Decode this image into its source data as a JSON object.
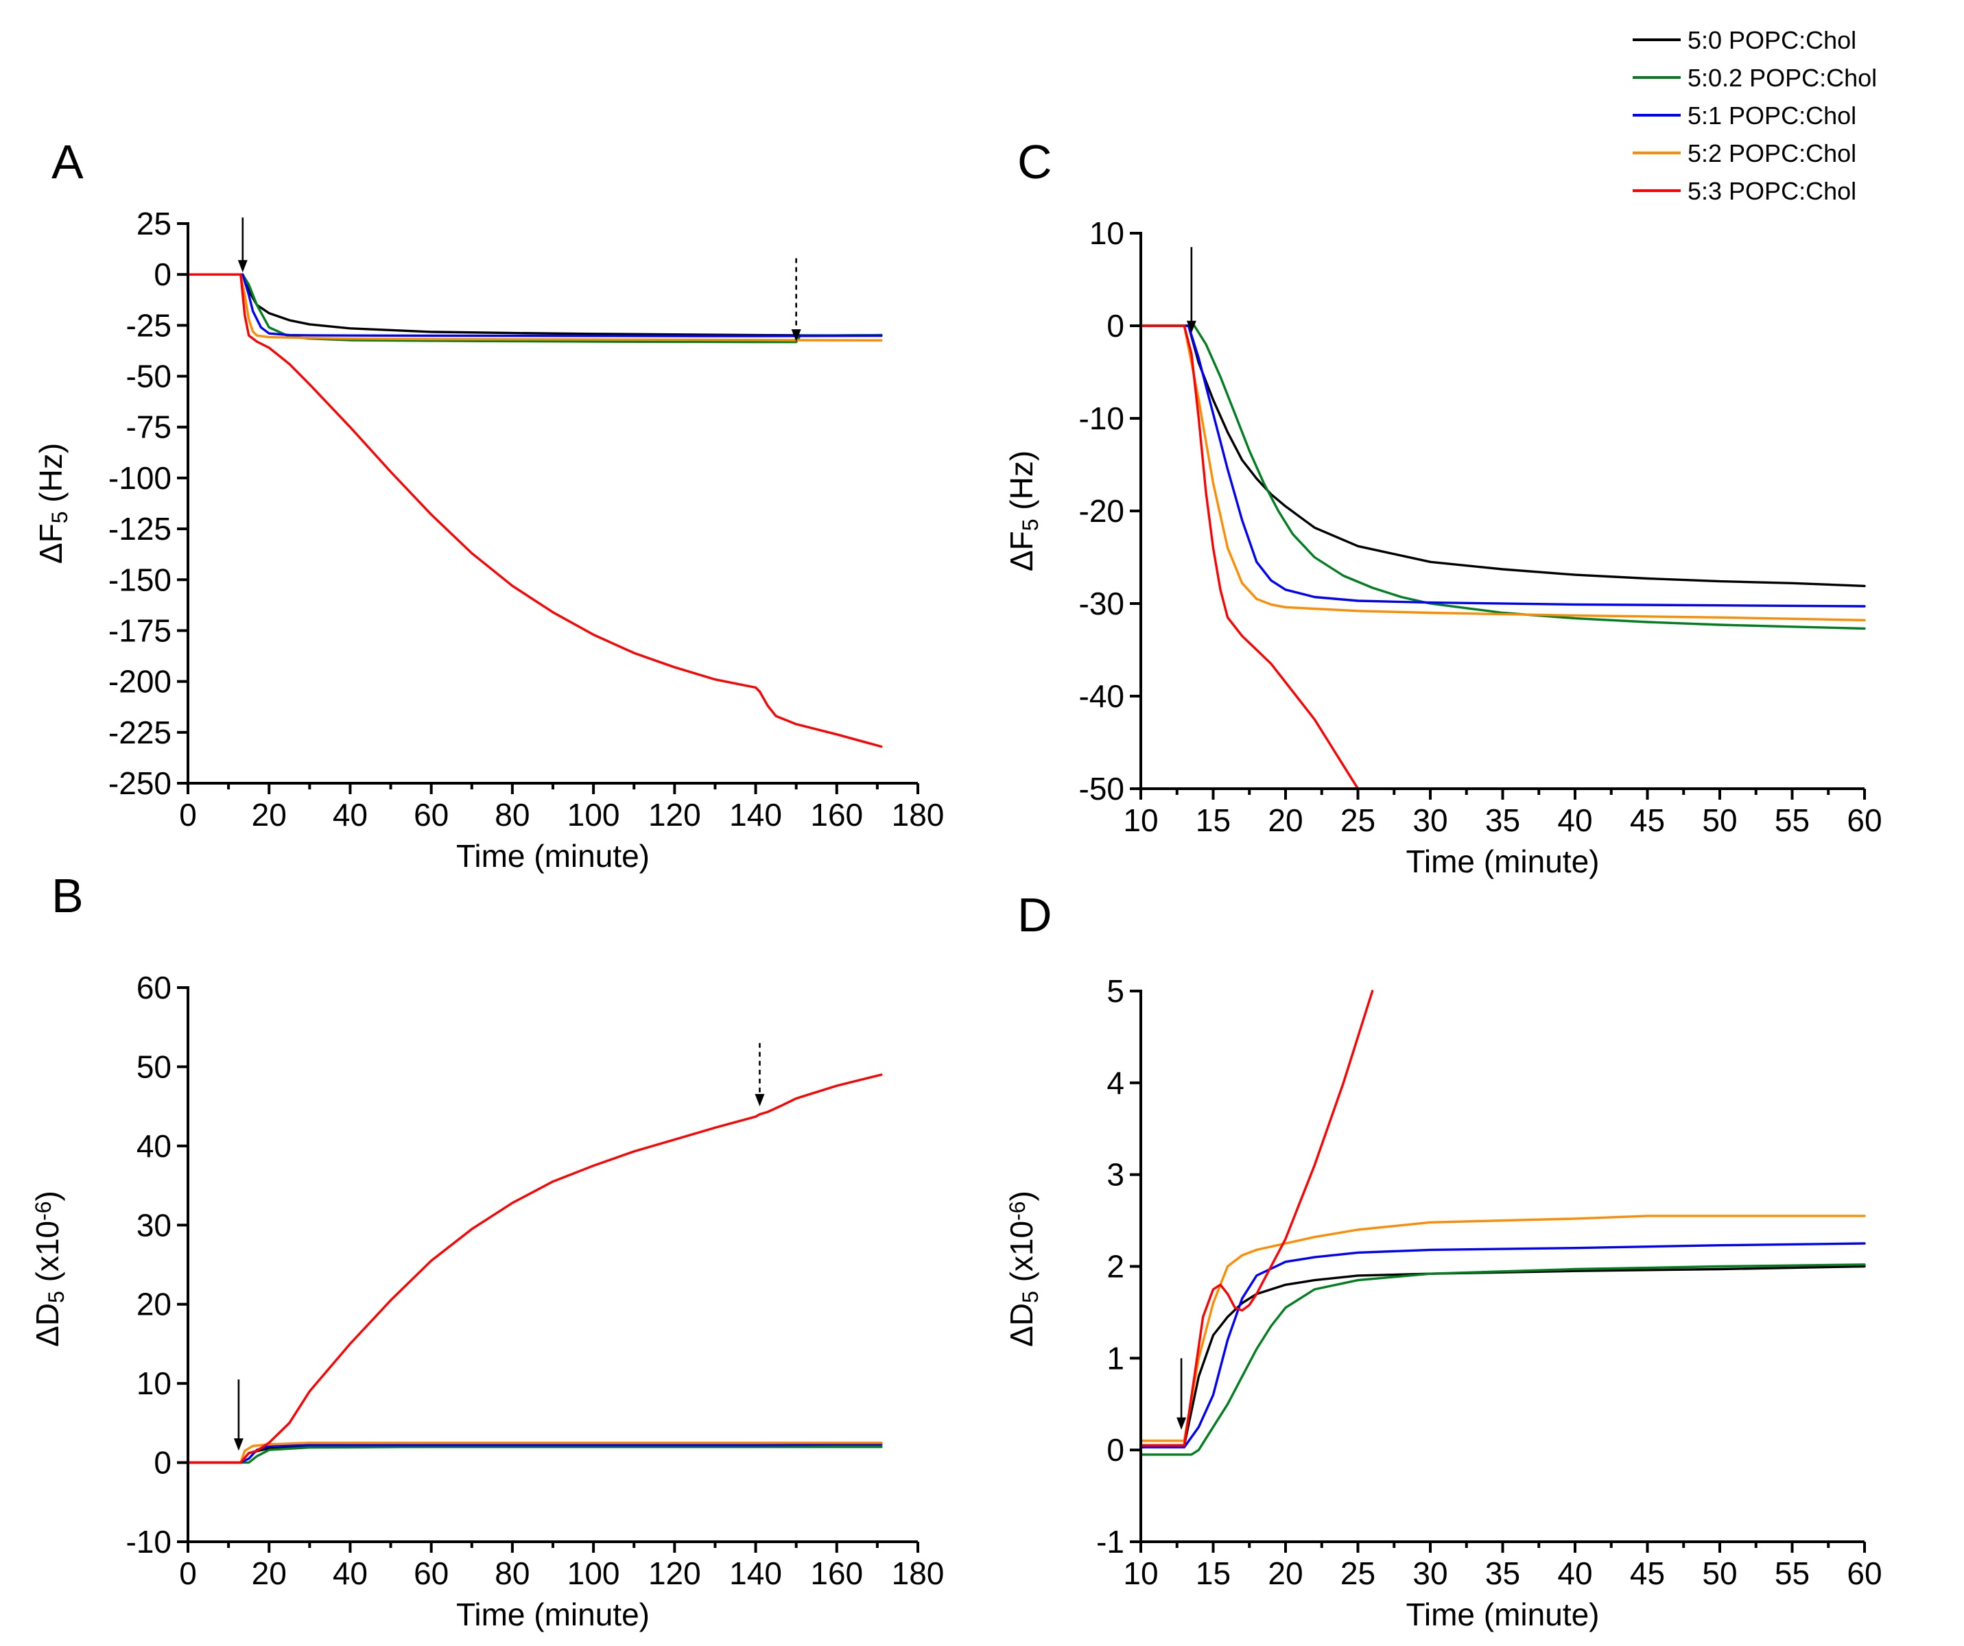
{
  "legend": [
    {
      "label": "5:0 POPC:Chol",
      "color": "#000000"
    },
    {
      "label": "5:0.2 POPC:Chol",
      "color": "#007f1f"
    },
    {
      "label": "5:1 POPC:Chol",
      "color": "#0000ff"
    },
    {
      "label": "5:2 POPC:Chol",
      "color": "#ff8c00"
    },
    {
      "label": "5:3 POPC:Chol",
      "color": "#ff0000"
    }
  ],
  "chart_data": [
    {
      "panel": "A",
      "type": "line",
      "xlabel": "Time (minute)",
      "ylabel_main": "ΔF",
      "ylabel_sub": "5",
      "ylabel_suffix": " (Hz)",
      "xlim": [
        0,
        180
      ],
      "ylim": [
        -250,
        25
      ],
      "xticks": [
        0,
        20,
        40,
        60,
        80,
        100,
        120,
        140,
        160,
        180
      ],
      "yticks": [
        25,
        0,
        -25,
        -50,
        -75,
        -100,
        -125,
        -150,
        -175,
        -200,
        -225,
        -250
      ],
      "arrows": [
        {
          "x": 13.5,
          "y_top": 28,
          "y_tip": 1,
          "style": "solid"
        },
        {
          "x": 150,
          "y_top": 8,
          "y_tip": -33,
          "style": "dashed"
        }
      ],
      "series": [
        {
          "name": "5:0 POPC:Chol",
          "color": "#000000",
          "x": [
            0,
            12,
            13.5,
            15,
            17,
            20,
            25,
            30,
            40,
            60,
            80,
            100,
            120,
            140,
            160,
            171
          ],
          "y": [
            0,
            0,
            0,
            -8,
            -15,
            -19,
            -22.5,
            -24.5,
            -26.5,
            -28.2,
            -28.8,
            -29.2,
            -29.5,
            -29.8,
            -30,
            -29.8
          ]
        },
        {
          "name": "5:0.2 POPC:Chol",
          "color": "#007f1f",
          "x": [
            0,
            13.5,
            15,
            17,
            20,
            25,
            30,
            40,
            60,
            80,
            100,
            120,
            140,
            150,
            151,
            171
          ],
          "y": [
            0,
            0,
            -5,
            -15,
            -26,
            -30.5,
            -31.5,
            -32.3,
            -32.6,
            -32.8,
            -33,
            -33.1,
            -33.2,
            -33.2,
            -30,
            -29.8
          ]
        },
        {
          "name": "5:1 POPC:Chol",
          "color": "#0000ff",
          "x": [
            0,
            13.5,
            15,
            16,
            18,
            20,
            25,
            30,
            40,
            60,
            100,
            140,
            171
          ],
          "y": [
            0,
            0,
            -10,
            -18,
            -26,
            -29,
            -29.8,
            -29.9,
            -30,
            -30.1,
            -30.2,
            -30.3,
            -30.1
          ]
        },
        {
          "name": "5:2 POPC:Chol",
          "color": "#ff8c00",
          "x": [
            0,
            13,
            14,
            15,
            16,
            17,
            20,
            30,
            40,
            60,
            100,
            140,
            150,
            171
          ],
          "y": [
            0,
            0,
            -10,
            -22,
            -28,
            -30,
            -30.8,
            -31.2,
            -31.5,
            -31.8,
            -32,
            -32.2,
            -32.3,
            -32.4
          ]
        },
        {
          "name": "5:3 POPC:Chol",
          "color": "#ff0000",
          "x": [
            0,
            13,
            14,
            15,
            17,
            20,
            25,
            30,
            40,
            50,
            60,
            70,
            80,
            90,
            100,
            110,
            120,
            130,
            140,
            141,
            143,
            145,
            150,
            160,
            171
          ],
          "y": [
            0,
            0,
            -20,
            -30,
            -33,
            -36,
            -44,
            -54,
            -75,
            -97,
            -118,
            -137,
            -153,
            -166,
            -177,
            -186,
            -193,
            -199,
            -203,
            -205,
            -212,
            -217,
            -221,
            -226,
            -232
          ]
        }
      ]
    },
    {
      "panel": "B",
      "type": "line",
      "xlabel": "Time (minute)",
      "ylabel_main": "ΔD",
      "ylabel_sub": "5",
      "ylabel_suffix": " (x10",
      "ylabel_exp": "-6",
      "ylabel_close": ")",
      "xlim": [
        0,
        180
      ],
      "ylim": [
        -10,
        60
      ],
      "xticks": [
        0,
        20,
        40,
        60,
        80,
        100,
        120,
        140,
        160,
        180
      ],
      "yticks": [
        60,
        50,
        40,
        30,
        20,
        10,
        0,
        -10
      ],
      "arrows": [
        {
          "x": 12.5,
          "y_top": 10.5,
          "y_tip": 1.5,
          "style": "solid"
        },
        {
          "x": 141,
          "y_top": 53,
          "y_tip": 45,
          "style": "dashed"
        }
      ],
      "series": [
        {
          "name": "5:0 POPC:Chol",
          "color": "#000000",
          "x": [
            0,
            13,
            15,
            20,
            30,
            60,
            100,
            140,
            171
          ],
          "y": [
            0,
            0,
            1.2,
            1.8,
            1.95,
            2,
            2,
            2,
            2
          ]
        },
        {
          "name": "5:0.2 POPC:Chol",
          "color": "#007f1f",
          "x": [
            0,
            13.5,
            15,
            17,
            20,
            30,
            60,
            100,
            140,
            171
          ],
          "y": [
            0,
            0,
            0,
            0.8,
            1.6,
            1.9,
            2,
            2,
            2,
            2
          ]
        },
        {
          "name": "5:1 POPC:Chol",
          "color": "#0000ff",
          "x": [
            0,
            13,
            15,
            17,
            20,
            30,
            60,
            100,
            140,
            160,
            171
          ],
          "y": [
            0,
            0,
            0.5,
            1.6,
            2.1,
            2.2,
            2.2,
            2.2,
            2.2,
            2.3,
            2.3
          ]
        },
        {
          "name": "5:2 POPC:Chol",
          "color": "#ff8c00",
          "x": [
            0,
            13,
            14,
            16,
            20,
            30,
            60,
            100,
            140,
            171
          ],
          "y": [
            0,
            0,
            1.5,
            2.1,
            2.3,
            2.5,
            2.5,
            2.5,
            2.5,
            2.5
          ]
        },
        {
          "name": "5:3 POPC:Chol",
          "color": "#ff0000",
          "x": [
            0,
            13,
            15,
            17,
            20,
            25,
            30,
            40,
            50,
            60,
            70,
            80,
            90,
            100,
            110,
            120,
            130,
            140,
            141,
            143,
            146,
            150,
            160,
            171
          ],
          "y": [
            0,
            0,
            1.2,
            1.5,
            2.5,
            5,
            9,
            15,
            20.5,
            25.5,
            29.5,
            32.8,
            35.5,
            37.5,
            39.3,
            40.8,
            42.3,
            43.7,
            44,
            44.3,
            45,
            46,
            47.6,
            49
          ]
        }
      ]
    },
    {
      "panel": "C",
      "type": "line",
      "xlabel": "Time (minute)",
      "ylabel_main": "ΔF",
      "ylabel_sub": "5",
      "ylabel_suffix": " (Hz)",
      "xlim": [
        10,
        60
      ],
      "ylim": [
        -50,
        10
      ],
      "xticks": [
        10,
        15,
        20,
        25,
        30,
        35,
        40,
        45,
        50,
        55,
        60
      ],
      "yticks": [
        10,
        0,
        -10,
        -20,
        -30,
        -40,
        -50
      ],
      "arrows": [
        {
          "x": 13.5,
          "y_top": 8.5,
          "y_tip": -0.8,
          "style": "solid"
        }
      ],
      "series": [
        {
          "name": "5:0 POPC:Chol",
          "color": "#000000",
          "x": [
            10,
            13.3,
            14,
            15,
            16,
            17,
            18,
            19,
            20,
            22,
            25,
            30,
            35,
            40,
            45,
            50,
            55,
            60
          ],
          "y": [
            0,
            0,
            -4,
            -8,
            -11.5,
            -14.5,
            -16.5,
            -18.2,
            -19.5,
            -21.8,
            -23.8,
            -25.5,
            -26.3,
            -26.9,
            -27.3,
            -27.6,
            -27.8,
            -28.1
          ]
        },
        {
          "name": "5:0.2 POPC:Chol",
          "color": "#007f1f",
          "x": [
            10,
            13.7,
            14.5,
            15.5,
            16.5,
            17.5,
            18.5,
            19.5,
            20.5,
            22,
            24,
            26,
            28,
            30,
            35,
            40,
            45,
            50,
            55,
            60
          ],
          "y": [
            0,
            0,
            -2,
            -5.5,
            -9.5,
            -13.5,
            -17,
            -20,
            -22.5,
            -25,
            -27,
            -28.3,
            -29.3,
            -30,
            -31,
            -31.6,
            -32,
            -32.3,
            -32.5,
            -32.7
          ]
        },
        {
          "name": "5:1 POPC:Chol",
          "color": "#0000ff",
          "x": [
            10,
            13.3,
            14,
            15,
            16,
            17,
            18,
            19,
            20,
            22,
            25,
            30,
            40,
            50,
            60
          ],
          "y": [
            0,
            0,
            -3.5,
            -9.5,
            -15.5,
            -21,
            -25.5,
            -27.5,
            -28.5,
            -29.3,
            -29.7,
            -29.9,
            -30.1,
            -30.2,
            -30.3
          ]
        },
        {
          "name": "5:2 POPC:Chol",
          "color": "#ff8c00",
          "x": [
            10,
            13,
            14,
            15,
            16,
            17,
            18,
            19,
            20,
            25,
            30,
            40,
            50,
            60
          ],
          "y": [
            0,
            0,
            -8,
            -17,
            -24,
            -27.8,
            -29.5,
            -30.1,
            -30.4,
            -30.8,
            -31,
            -31.3,
            -31.5,
            -31.8
          ]
        },
        {
          "name": "5:3 POPC:Chol",
          "color": "#ff0000",
          "x": [
            10,
            13,
            13.5,
            14,
            14.5,
            15,
            15.5,
            16,
            17,
            18,
            19,
            20,
            21,
            22,
            23,
            24,
            25
          ],
          "y": [
            0,
            0,
            -3,
            -10,
            -18,
            -24,
            -28.5,
            -31.5,
            -33.5,
            -35,
            -36.5,
            -38.5,
            -40.5,
            -42.5,
            -45,
            -47.5,
            -50
          ]
        }
      ]
    },
    {
      "panel": "D",
      "type": "line",
      "xlabel": "Time (minute)",
      "ylabel_main": "ΔD",
      "ylabel_sub": "5",
      "ylabel_suffix": " (x10",
      "ylabel_exp": "-6",
      "ylabel_close": ")",
      "xlim": [
        10,
        60
      ],
      "ylim": [
        -1,
        5
      ],
      "xticks": [
        10,
        15,
        20,
        25,
        30,
        35,
        40,
        45,
        50,
        55,
        60
      ],
      "yticks": [
        5,
        4,
        3,
        2,
        1,
        0,
        -1
      ],
      "arrows": [
        {
          "x": 12.8,
          "y_top": 1.0,
          "y_tip": 0.22,
          "style": "solid"
        }
      ],
      "series": [
        {
          "name": "5:0 POPC:Chol",
          "color": "#000000",
          "x": [
            10,
            13,
            14,
            15,
            16,
            17,
            18,
            20,
            22,
            25,
            30,
            40,
            50,
            60
          ],
          "y": [
            0.05,
            0.05,
            0.8,
            1.25,
            1.45,
            1.6,
            1.7,
            1.8,
            1.85,
            1.9,
            1.92,
            1.95,
            1.97,
            2.0
          ]
        },
        {
          "name": "5:0.2 POPC:Chol",
          "color": "#007f1f",
          "x": [
            10,
            13.5,
            14,
            15,
            16,
            17,
            18,
            19,
            20,
            22,
            25,
            30,
            40,
            50,
            60
          ],
          "y": [
            -0.05,
            -0.05,
            0.0,
            0.25,
            0.5,
            0.8,
            1.1,
            1.35,
            1.55,
            1.75,
            1.85,
            1.92,
            1.97,
            2.0,
            2.02
          ]
        },
        {
          "name": "5:1 POPC:Chol",
          "color": "#0000ff",
          "x": [
            10,
            13,
            14,
            15,
            16,
            17,
            18,
            20,
            22,
            25,
            30,
            40,
            50,
            60
          ],
          "y": [
            0.03,
            0.03,
            0.25,
            0.6,
            1.2,
            1.65,
            1.9,
            2.05,
            2.1,
            2.15,
            2.18,
            2.2,
            2.23,
            2.25
          ]
        },
        {
          "name": "5:2 POPC:Chol",
          "color": "#ff8c00",
          "x": [
            10,
            13,
            14,
            15,
            16,
            17,
            18,
            20,
            22,
            25,
            30,
            35,
            40,
            45,
            50,
            55,
            60
          ],
          "y": [
            0.1,
            0.1,
            1.0,
            1.6,
            2.0,
            2.12,
            2.18,
            2.25,
            2.32,
            2.4,
            2.48,
            2.5,
            2.52,
            2.55,
            2.55,
            2.55,
            2.55
          ]
        },
        {
          "name": "5:3 POPC:Chol",
          "color": "#ff0000",
          "x": [
            10,
            13,
            13.7,
            14.3,
            15,
            15.5,
            16,
            16.5,
            17,
            17.5,
            18,
            19,
            20,
            21,
            22,
            23,
            24,
            25,
            26
          ],
          "y": [
            0.05,
            0.05,
            0.8,
            1.45,
            1.75,
            1.8,
            1.7,
            1.55,
            1.52,
            1.58,
            1.7,
            2.0,
            2.3,
            2.7,
            3.1,
            3.55,
            4.0,
            4.5,
            5.0
          ]
        }
      ]
    }
  ]
}
